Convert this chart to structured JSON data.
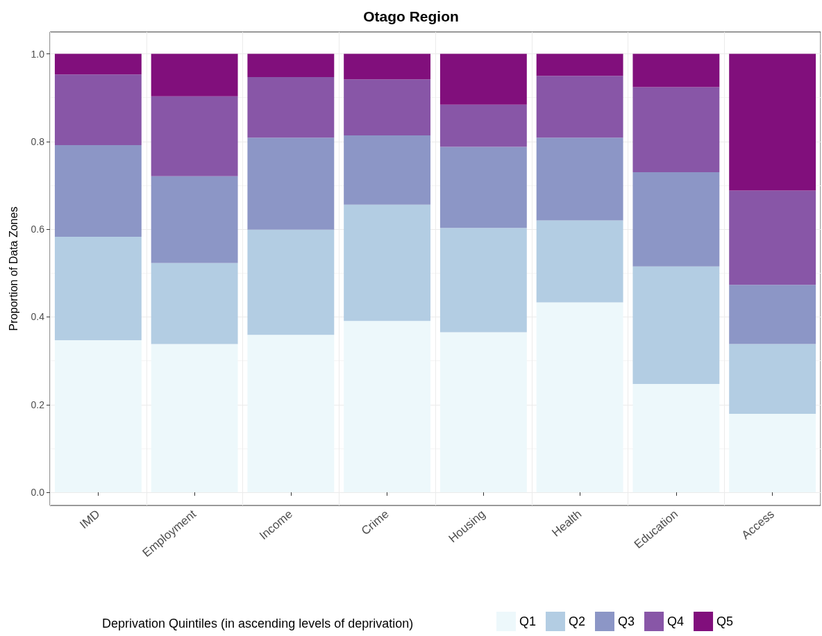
{
  "chart_data": {
    "type": "bar",
    "stacked": true,
    "title": "Otago Region",
    "ylabel": "Proportion of Data Zones",
    "legend_title": "Deprivation Quintiles (in ascending levels of deprivation)",
    "legend": "bottom",
    "grid": true,
    "categories": [
      "IMD",
      "Employment",
      "Income",
      "Crime",
      "Housing",
      "Health",
      "Education",
      "Access"
    ],
    "ylim": [
      -0.03,
      1.05
    ],
    "yticks": [
      {
        "value": 0,
        "label": "0.0"
      },
      {
        "value": 0.2,
        "label": "0.2"
      },
      {
        "value": 0.4,
        "label": "0.4"
      },
      {
        "value": 0.6,
        "label": "0.6"
      },
      {
        "value": 0.8,
        "label": "0.8"
      },
      {
        "value": 1,
        "label": "1.0"
      }
    ],
    "series": [
      {
        "name": "Q1",
        "color": "#edf8fb",
        "values": [
          0.347,
          0.338,
          0.359,
          0.391,
          0.365,
          0.433,
          0.247,
          0.179
        ]
      },
      {
        "name": "Q2",
        "color": "#b3cde3",
        "values": [
          0.236,
          0.185,
          0.24,
          0.265,
          0.238,
          0.187,
          0.268,
          0.159
        ]
      },
      {
        "name": "Q3",
        "color": "#8c96c6",
        "values": [
          0.209,
          0.198,
          0.21,
          0.158,
          0.185,
          0.189,
          0.215,
          0.135
        ]
      },
      {
        "name": "Q4",
        "color": "#8856a7",
        "values": [
          0.161,
          0.182,
          0.138,
          0.128,
          0.096,
          0.141,
          0.194,
          0.215
        ]
      },
      {
        "name": "Q5",
        "color": "#810f7c",
        "values": [
          0.047,
          0.097,
          0.053,
          0.058,
          0.116,
          0.05,
          0.076,
          0.312
        ]
      }
    ]
  }
}
